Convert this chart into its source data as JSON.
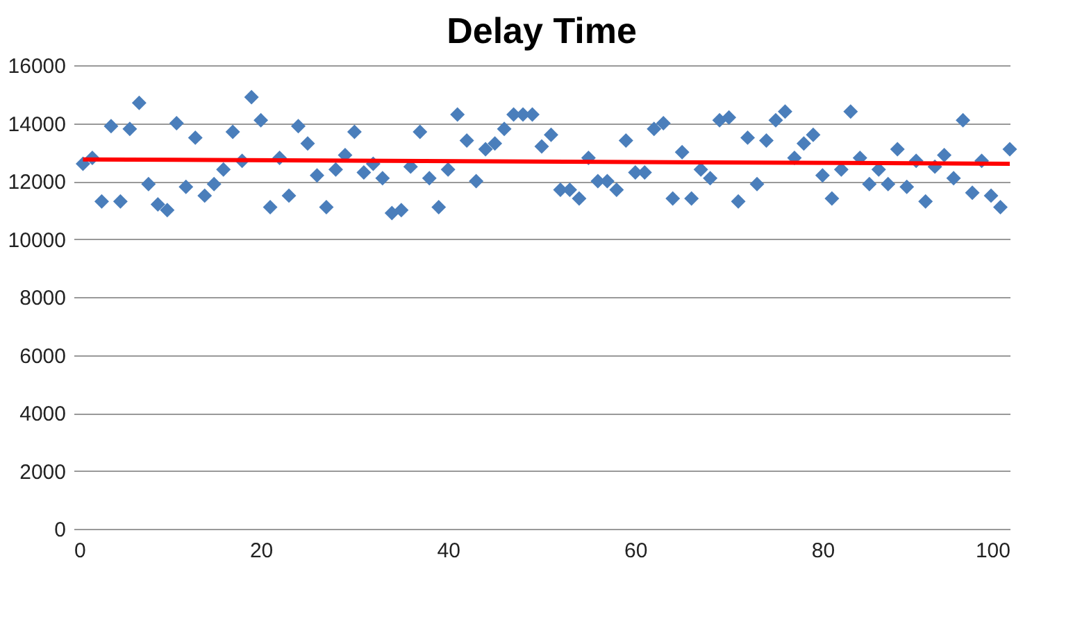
{
  "chart_data": {
    "type": "scatter",
    "title": "Delay Time",
    "xlim": [
      0,
      100
    ],
    "xticks": [
      0,
      20,
      40,
      60,
      80,
      100
    ],
    "ylim": [
      0,
      16000
    ],
    "yticks": [
      0,
      2000,
      4000,
      6000,
      8000,
      10000,
      12000,
      14000,
      16000
    ],
    "grid": "y",
    "series": [
      {
        "color": "#4a7ebb",
        "marker": "diamond",
        "x": [
          1,
          2,
          3,
          4,
          5,
          6,
          7,
          8,
          9,
          10,
          11,
          12,
          13,
          14,
          15,
          16,
          17,
          18,
          19,
          20,
          21,
          22,
          23,
          24,
          25,
          26,
          27,
          28,
          29,
          30,
          31,
          32,
          33,
          34,
          35,
          36,
          37,
          38,
          39,
          40,
          41,
          42,
          43,
          44,
          45,
          46,
          47,
          48,
          49,
          50,
          51,
          52,
          53,
          54,
          55,
          56,
          57,
          58,
          59,
          60,
          61,
          62,
          63,
          64,
          65,
          66,
          67,
          68,
          69,
          70,
          71,
          72,
          73,
          74,
          75,
          76,
          77,
          78,
          79,
          80,
          81,
          82,
          83,
          84,
          85,
          86,
          87,
          88,
          89,
          90,
          91,
          92,
          93,
          94,
          95,
          96,
          97,
          98,
          99,
          100
        ],
        "values": [
          12600,
          12800,
          11300,
          13900,
          11300,
          13800,
          14700,
          11900,
          11200,
          11000,
          14000,
          11800,
          13500,
          11500,
          11900,
          12400,
          13700,
          12700,
          14900,
          14100,
          11100,
          12800,
          11500,
          13900,
          13300,
          12200,
          11100,
          12400,
          12900,
          13700,
          12300,
          12600,
          12100,
          10900,
          11000,
          12500,
          13700,
          12100,
          11100,
          12400,
          14300,
          13400,
          12000,
          13100,
          13300,
          13800,
          14300,
          14300,
          14300,
          13200,
          13600,
          11700,
          11700,
          11400,
          12800,
          12000,
          12000,
          11700,
          13400,
          12300,
          12300,
          13800,
          14000,
          11400,
          13000,
          11400,
          12400,
          12100,
          14100,
          14200,
          11300,
          13500,
          11900,
          13400,
          14100,
          14400,
          12800,
          13300,
          13600,
          12200,
          11400,
          12400,
          14400,
          12800,
          11900,
          12400,
          11900,
          13100,
          11800,
          12700,
          11300,
          12500,
          12900,
          12100,
          14100,
          11600,
          12700,
          11500,
          11100,
          13100
        ]
      },
      {
        "type": "line",
        "color": "#ff0000",
        "x": [
          1,
          100
        ],
        "values": [
          12750,
          12600
        ]
      }
    ]
  }
}
